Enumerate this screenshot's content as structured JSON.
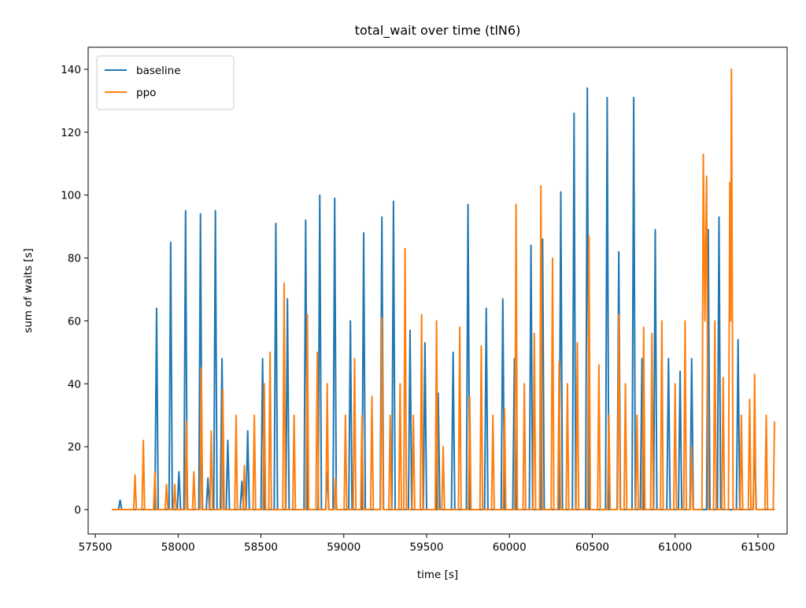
{
  "chart_data": {
    "type": "line",
    "title": "total_wait over time (tlN6)",
    "xlabel": "time [s]",
    "ylabel": "sum of waits [s]",
    "xlim": [
      57457,
      61676
    ],
    "ylim": [
      -7.75,
      147
    ],
    "xticks": [
      57500,
      58000,
      58500,
      59000,
      59500,
      60000,
      60500,
      61000,
      61500
    ],
    "yticks": [
      0,
      20,
      40,
      60,
      80,
      100,
      120,
      140
    ],
    "legend": "upper left",
    "series": [
      {
        "name": "baseline",
        "color": "#1f77b4",
        "x": [
          57600,
          57640,
          57650,
          57660,
          57860,
          57870,
          57880,
          57945,
          57955,
          57965,
          57995,
          58005,
          58015,
          58035,
          58045,
          58055,
          58125,
          58135,
          58145,
          58170,
          58180,
          58190,
          58215,
          58225,
          58235,
          58255,
          58265,
          58275,
          58290,
          58300,
          58310,
          58375,
          58385,
          58395,
          58410,
          58420,
          58430,
          58500,
          58510,
          58520,
          58580,
          58590,
          58600,
          58650,
          58660,
          58670,
          58760,
          58770,
          58780,
          58845,
          58855,
          58865,
          58890,
          58900,
          58910,
          58935,
          58945,
          58955,
          59030,
          59040,
          59050,
          59110,
          59120,
          59130,
          59220,
          59230,
          59240,
          59290,
          59300,
          59310,
          59390,
          59400,
          59410,
          59480,
          59490,
          59500,
          59560,
          59570,
          59580,
          59650,
          59660,
          59670,
          59740,
          59750,
          59760,
          59850,
          59860,
          59870,
          59950,
          59960,
          59970,
          60020,
          60030,
          60040,
          60120,
          60130,
          60140,
          60190,
          60200,
          60210,
          60300,
          60310,
          60320,
          60380,
          60390,
          60400,
          60460,
          60470,
          60480,
          60580,
          60590,
          60600,
          60650,
          60660,
          60670,
          60740,
          60750,
          60760,
          60790,
          60800,
          60810,
          60870,
          60880,
          60890,
          60950,
          60960,
          60970,
          61020,
          61030,
          61040,
          61090,
          61100,
          61110,
          61190,
          61200,
          61210,
          61255,
          61265,
          61275,
          61370,
          61380,
          61390,
          61470,
          61480,
          61490,
          61600
        ],
        "values": [
          0,
          0,
          3,
          0,
          0,
          64,
          0,
          0,
          85,
          0,
          0,
          12,
          0,
          0,
          95,
          0,
          0,
          94,
          0,
          0,
          10,
          0,
          0,
          95,
          0,
          0,
          48,
          0,
          0,
          22,
          0,
          0,
          9,
          0,
          0,
          25,
          0,
          0,
          48,
          0,
          0,
          91,
          0,
          0,
          67,
          0,
          0,
          92,
          0,
          0,
          100,
          0,
          0,
          12,
          0,
          0,
          99,
          0,
          0,
          60,
          0,
          0,
          88,
          0,
          0,
          93,
          0,
          0,
          98,
          0,
          0,
          57,
          0,
          0,
          53,
          0,
          0,
          37,
          0,
          0,
          50,
          0,
          0,
          97,
          0,
          0,
          64,
          0,
          0,
          67,
          0,
          0,
          48,
          0,
          0,
          84,
          0,
          0,
          86,
          0,
          0,
          101,
          0,
          0,
          126,
          0,
          0,
          134,
          0,
          0,
          131,
          0,
          0,
          82,
          0,
          0,
          131,
          0,
          0,
          48,
          0,
          0,
          89,
          0,
          0,
          48,
          0,
          0,
          44,
          0,
          0,
          48,
          0,
          0,
          89,
          0,
          0,
          93,
          0,
          0,
          54,
          0,
          0,
          20,
          0,
          0
        ]
      },
      {
        "name": "ppo",
        "color": "#ff7f0e",
        "x": [
          57600,
          57732,
          57740,
          57748,
          57782,
          57790,
          57798,
          57852,
          57860,
          57868,
          57922,
          57930,
          57938,
          57972,
          57980,
          57988,
          58042,
          58050,
          58058,
          58087,
          58095,
          58103,
          58132,
          58140,
          58148,
          58192,
          58200,
          58208,
          58262,
          58270,
          58278,
          58342,
          58350,
          58358,
          58392,
          58400,
          58408,
          58452,
          58460,
          58468,
          58512,
          58520,
          58528,
          58547,
          58555,
          58563,
          58632,
          58640,
          58648,
          58692,
          58700,
          58708,
          58772,
          58780,
          58788,
          58832,
          58840,
          58848,
          58892,
          58900,
          58908,
          58942,
          58950,
          58958,
          59002,
          59010,
          59018,
          59057,
          59065,
          59073,
          59102,
          59110,
          59118,
          59162,
          59170,
          59178,
          59222,
          59230,
          59238,
          59272,
          59280,
          59288,
          59332,
          59340,
          59348,
          59362,
          59370,
          59378,
          59412,
          59420,
          59428,
          59462,
          59470,
          59478,
          59552,
          59560,
          59568,
          59592,
          59600,
          59608,
          59692,
          59700,
          59708,
          59752,
          59760,
          59768,
          59822,
          59830,
          59838,
          59892,
          59900,
          59908,
          59962,
          59970,
          59978,
          60032,
          60040,
          60048,
          60082,
          60090,
          60098,
          60142,
          60150,
          60158,
          60182,
          60190,
          60198,
          60252,
          60260,
          60268,
          60292,
          60300,
          60308,
          60342,
          60350,
          60358,
          60402,
          60410,
          60418,
          60472,
          60480,
          60488,
          60532,
          60540,
          60548,
          60592,
          60600,
          60608,
          60652,
          60660,
          60668,
          60692,
          60700,
          60708,
          60762,
          60770,
          60778,
          60802,
          60810,
          60818,
          60852,
          60860,
          60868,
          60912,
          60920,
          60928,
          60992,
          61000,
          61008,
          61052,
          61060,
          61068,
          61092,
          61100,
          61108,
          61162,
          61170,
          61180,
          61190,
          61200,
          61232,
          61240,
          61248,
          61282,
          61290,
          61298,
          61322,
          61330,
          61335,
          61340,
          61350,
          61392,
          61400,
          61408,
          61442,
          61450,
          61458,
          61472,
          61480,
          61488,
          61542,
          61550,
          61558,
          61592,
          61600
        ],
        "values": [
          0,
          0,
          11,
          0,
          0,
          22,
          0,
          0,
          12,
          0,
          0,
          8,
          0,
          0,
          8,
          0,
          0,
          28,
          0,
          0,
          12,
          0,
          0,
          45,
          0,
          0,
          25,
          0,
          0,
          38,
          0,
          0,
          30,
          0,
          0,
          14,
          0,
          0,
          30,
          0,
          0,
          40,
          0,
          0,
          50,
          0,
          0,
          72,
          0,
          0,
          30,
          0,
          0,
          62,
          0,
          0,
          50,
          0,
          0,
          40,
          0,
          0,
          10,
          0,
          0,
          30,
          0,
          0,
          48,
          0,
          0,
          30,
          0,
          0,
          36,
          0,
          0,
          61,
          0,
          0,
          30,
          0,
          0,
          40,
          0,
          0,
          83,
          0,
          0,
          30,
          0,
          0,
          62,
          0,
          0,
          60,
          0,
          0,
          20,
          0,
          0,
          58,
          0,
          0,
          36,
          0,
          0,
          52,
          0,
          0,
          30,
          0,
          0,
          32,
          0,
          0,
          97,
          0,
          0,
          40,
          0,
          0,
          56,
          0,
          0,
          103,
          0,
          0,
          80,
          0,
          0,
          47,
          0,
          0,
          40,
          0,
          0,
          53,
          0,
          0,
          87,
          0,
          0,
          46,
          0,
          0,
          30,
          0,
          0,
          62,
          0,
          0,
          40,
          0,
          0,
          30,
          0,
          0,
          58,
          0,
          0,
          56,
          0,
          0,
          60,
          0,
          0,
          40,
          0,
          0,
          60,
          0,
          0,
          20,
          0,
          0,
          113,
          60,
          106,
          0,
          0,
          60,
          0,
          0,
          42,
          0,
          0,
          104,
          60,
          140,
          0,
          0,
          30,
          0,
          0,
          35,
          0,
          0,
          43,
          0,
          0,
          30,
          0,
          0,
          28
        ]
      }
    ]
  }
}
